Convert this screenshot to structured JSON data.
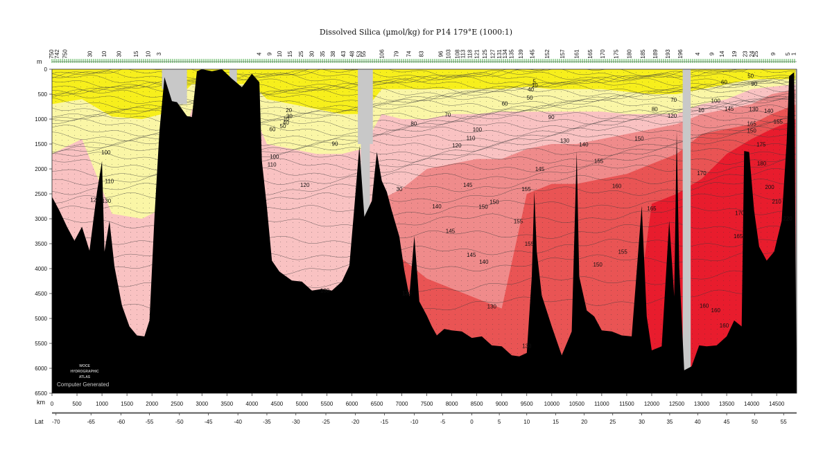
{
  "chart_data": {
    "type": "heatmap",
    "title": "Dissolved Silica (µmol/kg) for P14 179°E (1000:1)",
    "y_unit": "m",
    "x_unit": "km",
    "lat_label": "Lat",
    "xlim": [
      0,
      14900
    ],
    "ylim": [
      0,
      6500
    ],
    "x_ticks": [
      0,
      500,
      1000,
      1500,
      2000,
      2500,
      3000,
      3500,
      4000,
      4500,
      5000,
      5500,
      6000,
      6500,
      7000,
      7500,
      8000,
      8500,
      9000,
      9500,
      10000,
      10500,
      11000,
      11500,
      12000,
      12500,
      13000,
      13500,
      14000,
      14500
    ],
    "y_ticks": [
      0,
      500,
      1000,
      1500,
      2000,
      2500,
      3000,
      3500,
      4000,
      4500,
      5000,
      5500,
      6000,
      6500
    ],
    "lat_ticks": [
      {
        "label": "-70",
        "km": 80
      },
      {
        "label": "-65",
        "km": 780
      },
      {
        "label": "-60",
        "km": 1380
      },
      {
        "label": "-55",
        "km": 1950
      },
      {
        "label": "-50",
        "km": 2550
      },
      {
        "label": "-45",
        "km": 3130
      },
      {
        "label": "-40",
        "km": 3720
      },
      {
        "label": "-35",
        "km": 4300
      },
      {
        "label": "-30",
        "km": 4880
      },
      {
        "label": "-25",
        "km": 5480
      },
      {
        "label": "-20",
        "km": 6070
      },
      {
        "label": "-15",
        "km": 6650
      },
      {
        "label": "-10",
        "km": 7250
      },
      {
        "label": "-5",
        "km": 7820
      },
      {
        "label": "0",
        "km": 8400
      },
      {
        "label": "5",
        "km": 8950
      },
      {
        "label": "10",
        "km": 9500
      },
      {
        "label": "15",
        "km": 10080
      },
      {
        "label": "20",
        "km": 10650
      },
      {
        "label": "25",
        "km": 11220
      },
      {
        "label": "30",
        "km": 11800
      },
      {
        "label": "35",
        "km": 12360
      },
      {
        "label": "40",
        "km": 12920
      },
      {
        "label": "45",
        "km": 13500
      },
      {
        "label": "50",
        "km": 14060
      },
      {
        "label": "55",
        "km": 14640
      }
    ],
    "color_bands": [
      {
        "max_value": 40,
        "color": "#f7ef1c"
      },
      {
        "max_value": 90,
        "color": "#faf6a6"
      },
      {
        "max_value": 130,
        "color": "#f9c2c2"
      },
      {
        "max_value": 145,
        "color": "#ef8b8b"
      },
      {
        "max_value": 160,
        "color": "#e95454"
      },
      {
        "max_value": 250,
        "color": "#e81c2d"
      }
    ],
    "contour_labels": [
      {
        "text": "100",
        "x": 1080,
        "y": 1670
      },
      {
        "text": "110",
        "x": 1150,
        "y": 2240
      },
      {
        "text": "120",
        "x": 860,
        "y": 2620
      },
      {
        "text": "130",
        "x": 1090,
        "y": 2640
      },
      {
        "text": "10",
        "x": 4690,
        "y": 990
      },
      {
        "text": "20",
        "x": 4740,
        "y": 820
      },
      {
        "text": "30",
        "x": 4750,
        "y": 940
      },
      {
        "text": "40",
        "x": 4680,
        "y": 1070
      },
      {
        "text": "50",
        "x": 4620,
        "y": 1140
      },
      {
        "text": "60",
        "x": 4410,
        "y": 1200
      },
      {
        "text": "90",
        "x": 5660,
        "y": 1490
      },
      {
        "text": "100",
        "x": 4450,
        "y": 1750
      },
      {
        "text": "110",
        "x": 4400,
        "y": 1910
      },
      {
        "text": "120",
        "x": 5060,
        "y": 2320
      },
      {
        "text": "130",
        "x": 5460,
        "y": 4440
      },
      {
        "text": "5",
        "x": 9650,
        "y": 240
      },
      {
        "text": "10",
        "x": 9660,
        "y": 320
      },
      {
        "text": "40",
        "x": 9580,
        "y": 400
      },
      {
        "text": "50",
        "x": 9560,
        "y": 570
      },
      {
        "text": "60",
        "x": 9060,
        "y": 690
      },
      {
        "text": "70",
        "x": 7920,
        "y": 910
      },
      {
        "text": "80",
        "x": 7240,
        "y": 1090
      },
      {
        "text": "90",
        "x": 9990,
        "y": 960
      },
      {
        "text": "100",
        "x": 8510,
        "y": 1210
      },
      {
        "text": "110",
        "x": 8380,
        "y": 1380
      },
      {
        "text": "120",
        "x": 8100,
        "y": 1530
      },
      {
        "text": "130",
        "x": 10260,
        "y": 1430
      },
      {
        "text": "140",
        "x": 10640,
        "y": 1510
      },
      {
        "text": "145",
        "x": 9760,
        "y": 2000
      },
      {
        "text": "155",
        "x": 10940,
        "y": 1840
      },
      {
        "text": "150",
        "x": 11750,
        "y": 1390
      },
      {
        "text": "160",
        "x": 11300,
        "y": 2340
      },
      {
        "text": "165",
        "x": 12000,
        "y": 2790
      },
      {
        "text": "170",
        "x": 13000,
        "y": 2080
      },
      {
        "text": "145",
        "x": 8320,
        "y": 2320
      },
      {
        "text": "155",
        "x": 9490,
        "y": 2400
      },
      {
        "text": "150",
        "x": 8850,
        "y": 2660
      },
      {
        "text": "150",
        "x": 8630,
        "y": 2760
      },
      {
        "text": "140",
        "x": 7700,
        "y": 2750
      },
      {
        "text": "155",
        "x": 9330,
        "y": 3050
      },
      {
        "text": "145",
        "x": 7970,
        "y": 3240
      },
      {
        "text": "155",
        "x": 9550,
        "y": 3500
      },
      {
        "text": "145",
        "x": 8390,
        "y": 3720
      },
      {
        "text": "140",
        "x": 8640,
        "y": 3860
      },
      {
        "text": "150",
        "x": 10920,
        "y": 3920
      },
      {
        "text": "155",
        "x": 11420,
        "y": 3660
      },
      {
        "text": "130",
        "x": 8800,
        "y": 4760
      },
      {
        "text": "130",
        "x": 9500,
        "y": 5550
      },
      {
        "text": "130",
        "x": 7100,
        "y": 4490
      },
      {
        "text": "30",
        "x": 6950,
        "y": 2400
      },
      {
        "text": "80",
        "x": 12060,
        "y": 800
      },
      {
        "text": "70",
        "x": 12440,
        "y": 610
      },
      {
        "text": "120",
        "x": 12410,
        "y": 930
      },
      {
        "text": "10",
        "x": 12990,
        "y": 820
      },
      {
        "text": "100",
        "x": 13280,
        "y": 630
      },
      {
        "text": "145",
        "x": 13550,
        "y": 790
      },
      {
        "text": "60",
        "x": 13450,
        "y": 260
      },
      {
        "text": "50",
        "x": 13980,
        "y": 130
      },
      {
        "text": "90",
        "x": 14050,
        "y": 290
      },
      {
        "text": "130",
        "x": 14040,
        "y": 800
      },
      {
        "text": "140",
        "x": 14340,
        "y": 830
      },
      {
        "text": "165",
        "x": 14000,
        "y": 1090
      },
      {
        "text": "150",
        "x": 14000,
        "y": 1230
      },
      {
        "text": "155",
        "x": 14530,
        "y": 1050
      },
      {
        "text": "175",
        "x": 14190,
        "y": 1510
      },
      {
        "text": "180",
        "x": 14200,
        "y": 1890
      },
      {
        "text": "200",
        "x": 14360,
        "y": 2360
      },
      {
        "text": "210",
        "x": 14500,
        "y": 2650
      },
      {
        "text": "170",
        "x": 13760,
        "y": 2880
      },
      {
        "text": "165",
        "x": 13730,
        "y": 3350
      },
      {
        "text": "160",
        "x": 13050,
        "y": 4740
      },
      {
        "text": "160",
        "x": 13280,
        "y": 4830
      },
      {
        "text": "160",
        "x": 13450,
        "y": 5140
      },
      {
        "text": "220",
        "x": 14720,
        "y": 2990
      }
    ],
    "top_station_labels": [
      {
        "text": "750",
        "km": 30
      },
      {
        "text": "742",
        "km": 140
      },
      {
        "text": "750",
        "km": 300
      },
      {
        "text": "30",
        "km": 800
      },
      {
        "text": "10",
        "km": 1080
      },
      {
        "text": "30",
        "km": 1380
      },
      {
        "text": "15",
        "km": 1720
      },
      {
        "text": "10",
        "km": 1960
      },
      {
        "text": "3",
        "km": 2180
      },
      {
        "text": "4",
        "km": 4180
      },
      {
        "text": "9",
        "km": 4390
      },
      {
        "text": "10",
        "km": 4590
      },
      {
        "text": "15",
        "km": 4800
      },
      {
        "text": "25",
        "km": 5020
      },
      {
        "text": "30",
        "km": 5240
      },
      {
        "text": "35",
        "km": 5450
      },
      {
        "text": "38",
        "km": 5660
      },
      {
        "text": "43",
        "km": 5870
      },
      {
        "text": "48",
        "km": 6040
      },
      {
        "text": "53",
        "km": 6180
      },
      {
        "text": "55",
        "km": 6270
      },
      {
        "text": "106",
        "km": 6640
      },
      {
        "text": "79",
        "km": 6930
      },
      {
        "text": "74",
        "km": 7180
      },
      {
        "text": "83",
        "km": 7430
      },
      {
        "text": "96",
        "km": 7820
      },
      {
        "text": "103",
        "km": 7970
      },
      {
        "text": "108",
        "km": 8150
      },
      {
        "text": "113",
        "km": 8260
      },
      {
        "text": "118",
        "km": 8400
      },
      {
        "text": "121",
        "km": 8540
      },
      {
        "text": "125",
        "km": 8700
      },
      {
        "text": "127",
        "km": 8860
      },
      {
        "text": "131",
        "km": 8990
      },
      {
        "text": "134",
        "km": 9100
      },
      {
        "text": "135",
        "km": 9230
      },
      {
        "text": "139",
        "km": 9420
      },
      {
        "text": "145",
        "km": 9650
      },
      {
        "text": "152",
        "km": 9950
      },
      {
        "text": "157",
        "km": 10250
      },
      {
        "text": "161",
        "km": 10540
      },
      {
        "text": "165",
        "km": 10810
      },
      {
        "text": "170",
        "km": 11060
      },
      {
        "text": "175",
        "km": 11330
      },
      {
        "text": "180",
        "km": 11590
      },
      {
        "text": "185",
        "km": 11860
      },
      {
        "text": "189",
        "km": 12110
      },
      {
        "text": "193",
        "km": 12360
      },
      {
        "text": "196",
        "km": 12610
      },
      {
        "text": "4",
        "km": 12960
      },
      {
        "text": "9",
        "km": 13240
      },
      {
        "text": "14",
        "km": 13440
      },
      {
        "text": "19",
        "km": 13690
      },
      {
        "text": "23",
        "km": 13910
      },
      {
        "text": "24",
        "km": 14040
      },
      {
        "text": "25",
        "km": 14120
      },
      {
        "text": "9",
        "km": 14470
      },
      {
        "text": "5",
        "km": 14760
      },
      {
        "text": "1",
        "km": 14880
      }
    ]
  },
  "logo": {
    "line1": "WOCE",
    "line2": "HYDROGRAPHIC",
    "line3": "ATLAS"
  },
  "credit": "Computer Generated",
  "colors": {
    "bathymetry": "#000000",
    "no_data": "#c8c8c8",
    "station_marks": "#1f9a1f"
  }
}
